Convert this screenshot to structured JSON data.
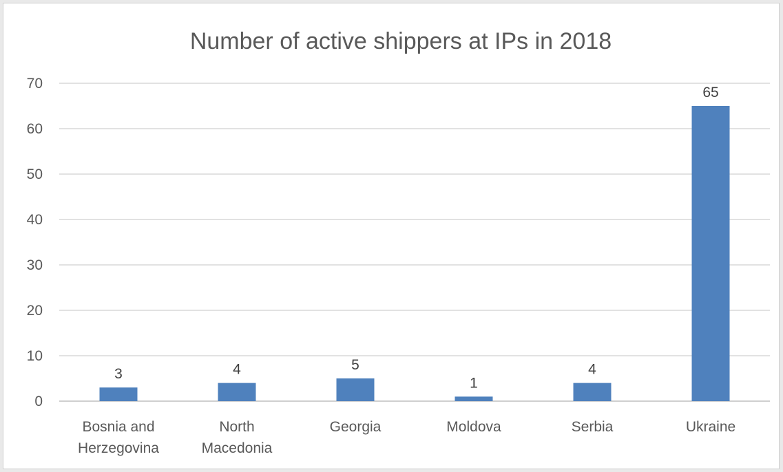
{
  "chart_data": {
    "type": "bar",
    "title": "Number of active shippers at IPs in 2018",
    "xlabel": "",
    "ylabel": "",
    "categories": [
      [
        "Bosnia and",
        "Herzegovina"
      ],
      [
        "North",
        "Macedonia"
      ],
      [
        "Georgia"
      ],
      [
        "Moldova"
      ],
      [
        "Serbia"
      ],
      [
        "Ukraine"
      ]
    ],
    "values": [
      3,
      4,
      5,
      1,
      4,
      65
    ],
    "ylim": [
      0,
      70
    ],
    "yticks": [
      0,
      10,
      20,
      30,
      40,
      50,
      60,
      70
    ],
    "grid": true,
    "legend": "none",
    "colors": {
      "bar": "#4f81bd",
      "grid": "#d9d9d9",
      "text": "#595959"
    }
  }
}
